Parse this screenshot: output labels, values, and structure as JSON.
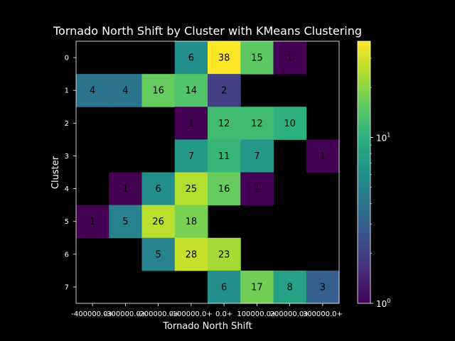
{
  "chart_data": {
    "type": "heatmap",
    "title": "Tornado North Shift by Cluster with KMeans Clustering",
    "xlabel": "Tornado North Shift",
    "ylabel": "Cluster",
    "x_categories": [
      "-400000.0+",
      "-300000.0+",
      "-200000.0+",
      "-100000.0+",
      "0.0+",
      "100000.0+",
      "200000.0+",
      "300000.0+"
    ],
    "y_categories": [
      "0",
      "1",
      "2",
      "3",
      "4",
      "5",
      "6",
      "7"
    ],
    "values": [
      [
        null,
        null,
        null,
        6,
        38,
        15,
        1,
        null
      ],
      [
        4,
        4,
        16,
        14,
        2,
        null,
        null,
        null
      ],
      [
        null,
        null,
        null,
        1,
        12,
        12,
        10,
        null
      ],
      [
        null,
        null,
        null,
        7,
        11,
        7,
        null,
        1
      ],
      [
        null,
        1,
        6,
        25,
        16,
        1,
        null,
        null
      ],
      [
        1,
        5,
        26,
        18,
        null,
        null,
        null,
        null
      ],
      [
        null,
        null,
        5,
        28,
        23,
        null,
        null,
        null
      ],
      [
        null,
        null,
        null,
        null,
        6,
        17,
        8,
        3
      ]
    ],
    "color_scale": "log",
    "colormap": "viridis",
    "vmin": 1,
    "vmax": 38,
    "colorbar_ticks": [
      {
        "value": 1,
        "label": "10",
        "exponent": "0"
      },
      {
        "value": 10,
        "label": "10",
        "exponent": "1"
      }
    ],
    "grid": false,
    "background": "#000000"
  }
}
